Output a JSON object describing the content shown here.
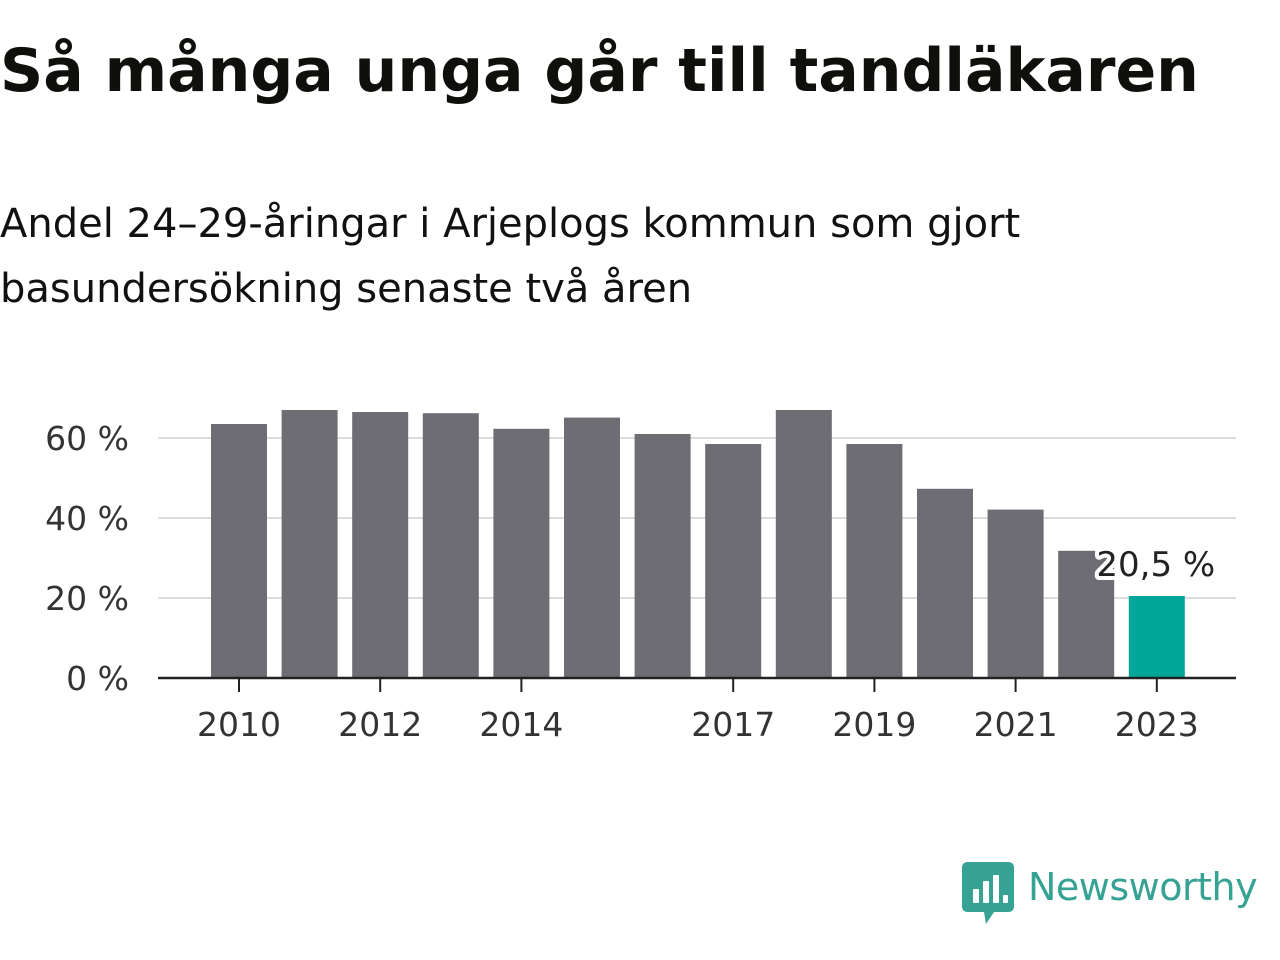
{
  "chart_data": {
    "type": "bar",
    "title": "Så många unga går till tandläkaren",
    "subtitle": "Andel 24–29-åringar i Arjeplogs kommun som gjort basundersökning senaste två åren",
    "categories": [
      "2010",
      "2011",
      "2012",
      "2013",
      "2014",
      "2015",
      "2016",
      "2017",
      "2018",
      "2019",
      "2020",
      "2021",
      "2022",
      "2023"
    ],
    "values": [
      63.5,
      67,
      66.5,
      66.2,
      62.3,
      65.1,
      61,
      58.5,
      67,
      58.5,
      47.3,
      42.1,
      31.8,
      20.5
    ],
    "x_tick_labels": [
      "2010",
      "",
      "2012",
      "",
      "2014",
      "",
      "",
      "2017",
      "",
      "2019",
      "",
      "2021",
      "",
      "2023"
    ],
    "y_ticks": [
      0,
      20,
      40,
      60
    ],
    "y_tick_labels": [
      "0 %",
      "20 %",
      "40 %",
      "60 %"
    ],
    "ylim": [
      0,
      70
    ],
    "xlabel": "",
    "ylabel": "",
    "grid": true,
    "highlight_label": "20,5 %",
    "highlight_index": 13,
    "colors": {
      "bar": "#6e6d73",
      "highlight": "#00a697",
      "grid": "#dcdcdc",
      "axis": "#222222",
      "label": "#333333"
    }
  },
  "branding": {
    "name": "Newsworthy",
    "logo_icon": "newsworthy-logo-icon",
    "color": "#35a294"
  }
}
